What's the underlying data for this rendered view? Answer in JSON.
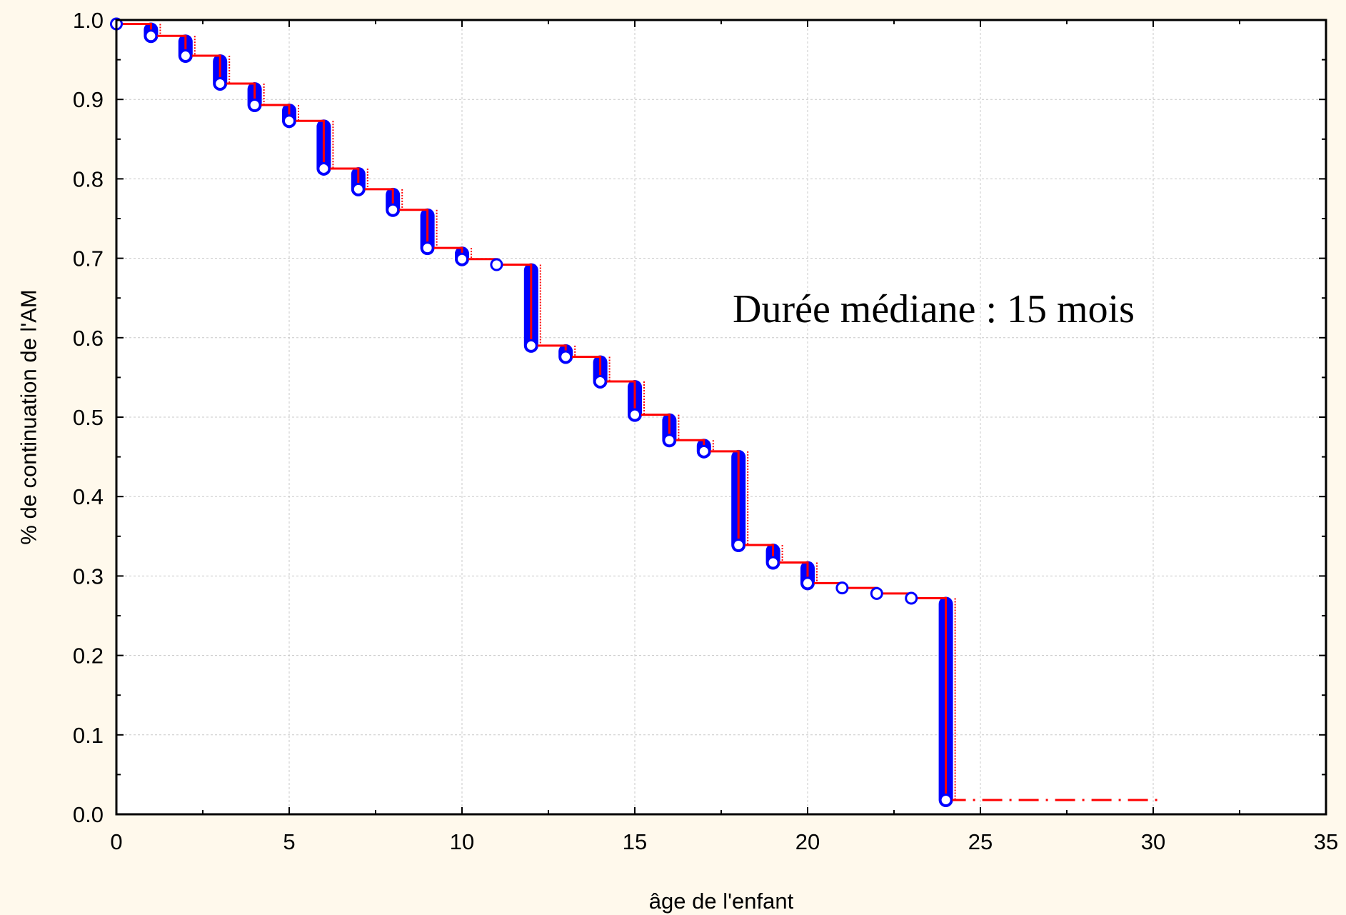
{
  "chart_data": {
    "type": "line",
    "title": "",
    "xlabel": "âge de l'enfant",
    "ylabel": "% de continuation de l'AM",
    "xlim": [
      0,
      35
    ],
    "ylim": [
      0.0,
      1.0
    ],
    "x_ticks": [
      "0",
      "5",
      "10",
      "15",
      "20",
      "25",
      "30",
      "35"
    ],
    "y_ticks": [
      "0.0",
      "0.1",
      "0.2",
      "0.3",
      "0.4",
      "0.5",
      "0.6",
      "0.7",
      "0.8",
      "0.9",
      "1.0"
    ],
    "grid": true,
    "legend": "none",
    "annotation": "Durée médiane : 15 mois",
    "series": [
      {
        "x": [
          0,
          1,
          2,
          3,
          4,
          5,
          6,
          7,
          8,
          9,
          10,
          11,
          12,
          13,
          14,
          15,
          16,
          17,
          18,
          19,
          20,
          21,
          22,
          23,
          24
        ],
        "y": [
          0.995,
          0.98,
          0.955,
          0.92,
          0.893,
          0.873,
          0.813,
          0.787,
          0.761,
          0.713,
          0.699,
          0.692,
          0.59,
          0.576,
          0.545,
          0.503,
          0.471,
          0.457,
          0.339,
          0.317,
          0.291,
          0.285,
          0.278,
          0.272,
          0.018
        ]
      }
    ],
    "tail": {
      "from_x": 24,
      "to_x": 30.3,
      "y": 0.018,
      "style": "dash-dot"
    },
    "colors": {
      "step_line": "#ff0000",
      "censor_marks": "#0000ff",
      "points_fill": "#ffffff",
      "background": "#fff9ec",
      "grid": "#c8c8c8"
    }
  }
}
